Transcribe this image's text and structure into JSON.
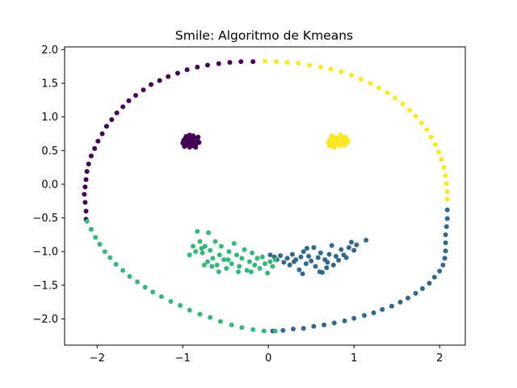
{
  "chart_data": {
    "type": "scatter",
    "title": "Smile: Algoritmo de Kmeans",
    "xlabel": "",
    "ylabel": "",
    "xlim": [
      -2.38,
      2.3
    ],
    "ylim": [
      -2.39,
      2.04
    ],
    "xticks": [
      -2,
      -1,
      0,
      1,
      2
    ],
    "xtick_labels": [
      "−2",
      "−1",
      "0",
      "1",
      "2"
    ],
    "yticks": [
      2.0,
      1.5,
      1.0,
      0.5,
      0.0,
      -0.5,
      -1.0,
      -1.5,
      -2.0
    ],
    "ytick_labels": [
      "2.0",
      "1.5",
      "1.0",
      "0.5",
      "0.0",
      "−0.5",
      "−1.0",
      "−1.5",
      "−2.0"
    ],
    "grid": false,
    "legend": "none",
    "colors": {
      "cluster_0": "#440154",
      "cluster_1": "#31688e",
      "cluster_2": "#35b779",
      "cluster_3": "#fde725"
    },
    "series": [
      {
        "color": "#440154",
        "points": [
          [
            -2.13,
            -0.52
          ],
          [
            -2.13,
            -0.4
          ],
          [
            -2.14,
            -0.27
          ],
          [
            -2.15,
            -0.15
          ],
          [
            -2.14,
            -0.04
          ],
          [
            -2.13,
            0.07
          ],
          [
            -2.12,
            0.19
          ],
          [
            -2.1,
            0.3
          ],
          [
            -2.07,
            0.42
          ],
          [
            -2.03,
            0.53
          ],
          [
            -1.99,
            0.64
          ],
          [
            -1.94,
            0.75
          ],
          [
            -1.89,
            0.86
          ],
          [
            -1.83,
            0.96
          ],
          [
            -1.77,
            1.06
          ],
          [
            -1.7,
            1.15
          ],
          [
            -1.63,
            1.24
          ],
          [
            -1.55,
            1.32
          ],
          [
            -1.46,
            1.4
          ],
          [
            -1.37,
            1.48
          ],
          [
            -1.27,
            1.54
          ],
          [
            -1.17,
            1.6
          ],
          [
            -1.06,
            1.65
          ],
          [
            -0.95,
            1.7
          ],
          [
            -0.83,
            1.74
          ],
          [
            -0.71,
            1.77
          ],
          [
            -0.58,
            1.79
          ],
          [
            -0.45,
            1.81
          ],
          [
            -0.32,
            1.82
          ],
          [
            -0.18,
            1.82
          ],
          [
            -0.95,
            0.67
          ],
          [
            -0.93,
            0.62
          ],
          [
            -0.9,
            0.7
          ],
          [
            -0.87,
            0.64
          ],
          [
            -0.97,
            0.59
          ],
          [
            -0.85,
            0.58
          ],
          [
            -0.92,
            0.55
          ],
          [
            -0.99,
            0.65
          ],
          [
            -0.88,
            0.72
          ],
          [
            -0.83,
            0.66
          ],
          [
            -0.96,
            0.71
          ],
          [
            -0.91,
            0.6
          ],
          [
            -0.86,
            0.69
          ],
          [
            -1.0,
            0.61
          ],
          [
            -0.94,
            0.68
          ],
          [
            -0.89,
            0.57
          ],
          [
            -0.84,
            0.61
          ],
          [
            -0.92,
            0.73
          ],
          [
            -0.98,
            0.56
          ],
          [
            -0.88,
            0.63
          ],
          [
            -0.81,
            0.62
          ],
          [
            -0.95,
            0.63
          ],
          [
            -0.9,
            0.66
          ],
          [
            -0.86,
            0.6
          ],
          [
            -0.93,
            0.58
          ],
          [
            -0.87,
            0.67
          ],
          [
            -0.82,
            0.7
          ],
          [
            -0.97,
            0.68
          ],
          [
            -0.91,
            0.64
          ],
          [
            -0.85,
            0.55
          ]
        ]
      },
      {
        "color": "#31688e",
        "points": [
          [
            0.05,
            -2.18
          ],
          [
            0.17,
            -2.17
          ],
          [
            0.29,
            -2.15
          ],
          [
            0.41,
            -2.14
          ],
          [
            0.53,
            -2.11
          ],
          [
            0.65,
            -2.09
          ],
          [
            0.77,
            -2.06
          ],
          [
            0.89,
            -2.03
          ],
          [
            1.0,
            -1.99
          ],
          [
            1.12,
            -1.95
          ],
          [
            1.23,
            -1.91
          ],
          [
            1.33,
            -1.86
          ],
          [
            1.44,
            -1.81
          ],
          [
            1.54,
            -1.75
          ],
          [
            1.63,
            -1.69
          ],
          [
            1.72,
            -1.62
          ],
          [
            1.8,
            -1.55
          ],
          [
            1.88,
            -1.47
          ],
          [
            1.94,
            -1.38
          ],
          [
            2.0,
            -1.29
          ],
          [
            2.04,
            -1.2
          ],
          [
            2.06,
            -1.1
          ],
          [
            2.07,
            -0.99
          ],
          [
            2.07,
            -0.87
          ],
          [
            2.07,
            -0.75
          ],
          [
            2.08,
            -0.63
          ],
          [
            2.09,
            -0.51
          ],
          [
            2.09,
            -0.38
          ],
          [
            0.02,
            -1.05
          ],
          [
            0.07,
            -1.08
          ],
          [
            0.1,
            -1.12
          ],
          [
            0.14,
            -1.06
          ],
          [
            0.18,
            -1.16
          ],
          [
            0.22,
            -1.1
          ],
          [
            0.25,
            -1.2
          ],
          [
            0.28,
            -1.04
          ],
          [
            0.32,
            -1.12
          ],
          [
            0.36,
            -1.27
          ],
          [
            0.38,
            -1.08
          ],
          [
            0.41,
            -1.0
          ],
          [
            0.44,
            -1.18
          ],
          [
            0.47,
            -1.07
          ],
          [
            0.5,
            -1.14
          ],
          [
            0.53,
            -0.94
          ],
          [
            0.55,
            -1.22
          ],
          [
            0.58,
            -1.09
          ],
          [
            0.61,
            -1.02
          ],
          [
            0.63,
            -1.31
          ],
          [
            0.66,
            -1.12
          ],
          [
            0.69,
            -1.16
          ],
          [
            0.71,
            -1.04
          ],
          [
            0.74,
            -0.91
          ],
          [
            0.76,
            -1.2
          ],
          [
            0.79,
            -1.07
          ],
          [
            0.82,
            -1.13
          ],
          [
            0.85,
            -0.97
          ],
          [
            0.88,
            -1.05
          ],
          [
            0.91,
            -1.09
          ],
          [
            0.94,
            -0.94
          ],
          [
            0.97,
            -0.86
          ],
          [
            1.0,
            -0.98
          ],
          [
            1.03,
            -0.9
          ],
          [
            1.14,
            -0.83
          ],
          [
            0.4,
            -1.33
          ],
          [
            0.6,
            -1.3
          ],
          [
            0.68,
            -1.24
          ],
          [
            0.3,
            -1.15
          ],
          [
            0.45,
            -0.95
          ]
        ]
      },
      {
        "color": "#35b779",
        "points": [
          [
            -2.12,
            -0.55
          ],
          [
            -2.07,
            -0.67
          ],
          [
            -2.02,
            -0.79
          ],
          [
            -1.97,
            -0.89
          ],
          [
            -1.91,
            -1.0
          ],
          [
            -1.85,
            -1.09
          ],
          [
            -1.78,
            -1.19
          ],
          [
            -1.7,
            -1.28
          ],
          [
            -1.62,
            -1.37
          ],
          [
            -1.53,
            -1.45
          ],
          [
            -1.44,
            -1.53
          ],
          [
            -1.35,
            -1.6
          ],
          [
            -1.25,
            -1.67
          ],
          [
            -1.14,
            -1.74
          ],
          [
            -1.03,
            -1.8
          ],
          [
            -0.92,
            -1.87
          ],
          [
            -0.8,
            -1.93
          ],
          [
            -0.68,
            -1.98
          ],
          [
            -0.56,
            -2.04
          ],
          [
            -0.43,
            -2.09
          ],
          [
            -0.31,
            -2.13
          ],
          [
            -0.18,
            -2.16
          ],
          [
            -0.05,
            -2.18
          ],
          [
            0.08,
            -2.18
          ],
          [
            -0.83,
            -0.7
          ],
          [
            -0.8,
            -0.85
          ],
          [
            -0.77,
            -1.02
          ],
          [
            -0.74,
            -0.92
          ],
          [
            -0.71,
            -1.15
          ],
          [
            -0.68,
            -0.98
          ],
          [
            -0.65,
            -1.1
          ],
          [
            -0.62,
            -0.85
          ],
          [
            -0.6,
            -1.2
          ],
          [
            -0.57,
            -1.05
          ],
          [
            -0.55,
            -0.92
          ],
          [
            -0.52,
            -1.12
          ],
          [
            -0.49,
            -1.25
          ],
          [
            -0.46,
            -1.0
          ],
          [
            -0.43,
            -1.18
          ],
          [
            -0.4,
            -0.88
          ],
          [
            -0.37,
            -1.05
          ],
          [
            -0.34,
            -1.22
          ],
          [
            -0.31,
            -1.1
          ],
          [
            -0.28,
            -0.97
          ],
          [
            -0.25,
            -1.28
          ],
          [
            -0.22,
            -1.15
          ],
          [
            -0.19,
            -1.02
          ],
          [
            -0.16,
            -1.2
          ],
          [
            -0.13,
            -1.1
          ],
          [
            -0.1,
            -1.25
          ],
          [
            -0.07,
            -1.08
          ],
          [
            -0.04,
            -1.18
          ],
          [
            -0.01,
            -1.32
          ],
          [
            0.02,
            -1.15
          ],
          [
            0.05,
            -1.22
          ],
          [
            0.08,
            -1.12
          ],
          [
            -0.7,
            -0.72
          ],
          [
            -0.92,
            -1.05
          ],
          [
            -0.88,
            -0.92
          ],
          [
            -0.85,
            -1.0
          ],
          [
            -0.78,
            -0.95
          ],
          [
            -0.58,
            -1.3
          ],
          [
            -0.35,
            -1.3
          ],
          [
            -0.2,
            -1.3
          ],
          [
            -0.47,
            -1.12
          ],
          [
            -0.66,
            -1.22
          ],
          [
            -0.75,
            -1.2
          ]
        ]
      },
      {
        "color": "#fde725",
        "points": [
          [
            -0.04,
            1.83
          ],
          [
            0.09,
            1.82
          ],
          [
            0.22,
            1.81
          ],
          [
            0.35,
            1.8
          ],
          [
            0.48,
            1.77
          ],
          [
            0.61,
            1.74
          ],
          [
            0.73,
            1.71
          ],
          [
            0.85,
            1.67
          ],
          [
            0.97,
            1.62
          ],
          [
            1.08,
            1.56
          ],
          [
            1.19,
            1.5
          ],
          [
            1.29,
            1.43
          ],
          [
            1.39,
            1.36
          ],
          [
            1.48,
            1.28
          ],
          [
            1.57,
            1.19
          ],
          [
            1.65,
            1.1
          ],
          [
            1.72,
            1.01
          ],
          [
            1.79,
            0.91
          ],
          [
            1.85,
            0.81
          ],
          [
            1.9,
            0.7
          ],
          [
            1.95,
            0.59
          ],
          [
            1.99,
            0.48
          ],
          [
            2.02,
            0.37
          ],
          [
            2.05,
            0.25
          ],
          [
            2.07,
            0.13
          ],
          [
            2.08,
            0.01
          ],
          [
            2.09,
            -0.11
          ],
          [
            2.09,
            -0.22
          ],
          [
            0.7,
            0.62
          ],
          [
            0.73,
            0.58
          ],
          [
            0.76,
            0.66
          ],
          [
            0.79,
            0.61
          ],
          [
            0.82,
            0.69
          ],
          [
            0.85,
            0.64
          ],
          [
            0.88,
            0.59
          ],
          [
            0.91,
            0.67
          ],
          [
            0.74,
            0.72
          ],
          [
            0.77,
            0.55
          ],
          [
            0.81,
            0.6
          ],
          [
            0.84,
            0.73
          ],
          [
            0.87,
            0.63
          ],
          [
            0.9,
            0.7
          ],
          [
            0.72,
            0.66
          ],
          [
            0.78,
            0.69
          ],
          [
            0.83,
            0.57
          ],
          [
            0.86,
            0.66
          ],
          [
            0.92,
            0.62
          ],
          [
            0.75,
            0.6
          ],
          [
            0.8,
            0.64
          ],
          [
            0.89,
            0.58
          ],
          [
            0.71,
            0.57
          ],
          [
            0.76,
            0.63
          ],
          [
            0.82,
            0.62
          ],
          [
            0.85,
            0.7
          ],
          [
            0.79,
            0.67
          ],
          [
            0.88,
            0.65
          ],
          [
            0.93,
            0.64
          ],
          [
            0.74,
            0.64
          ]
        ]
      }
    ]
  }
}
